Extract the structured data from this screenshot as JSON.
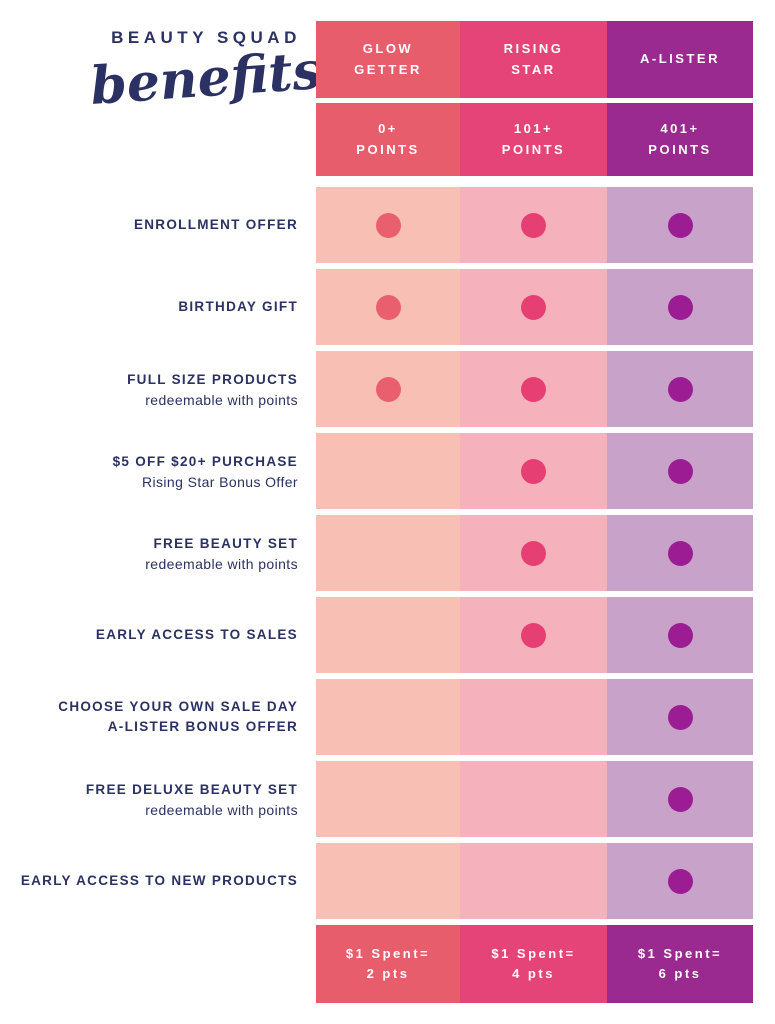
{
  "brand": {
    "name": "BEAUTY SQUAD",
    "script": "benefits"
  },
  "colors": {
    "navy": "#2B3263",
    "background": "#FFFFFF"
  },
  "tiers": [
    {
      "name": "GLOW\nGETTER",
      "points": "0+\nPOINTS",
      "earn": "$1 Spent=\n2 pts",
      "color_header": "#E85D6B",
      "color_light": "#F8C0B5",
      "color_dot": "#EA5F6E"
    },
    {
      "name": "RISING\nSTAR",
      "points": "101+\nPOINTS",
      "earn": "$1 Spent=\n4 pts",
      "color_header": "#E54479",
      "color_light": "#F5B2BC",
      "color_dot": "#E63F74"
    },
    {
      "name": "A-LISTER",
      "points": "401+\nPOINTS",
      "earn": "$1 Spent=\n6 pts",
      "color_header": "#9A2A8F",
      "color_light": "#C8A2C8",
      "color_dot": "#9C1D93"
    }
  ],
  "benefits": [
    {
      "label": "ENROLLMENT OFFER",
      "sublabel": "",
      "included": [
        true,
        true,
        true
      ]
    },
    {
      "label": "BIRTHDAY GIFT",
      "sublabel": "",
      "included": [
        true,
        true,
        true
      ]
    },
    {
      "label": "FULL SIZE PRODUCTS",
      "sublabel": "redeemable with points",
      "included": [
        true,
        true,
        true
      ]
    },
    {
      "label": "$5 OFF $20+ PURCHASE",
      "sublabel": "Rising Star Bonus Offer",
      "included": [
        false,
        true,
        true
      ]
    },
    {
      "label": "FREE BEAUTY SET",
      "sublabel": "redeemable with points",
      "included": [
        false,
        true,
        true
      ]
    },
    {
      "label": "EARLY ACCESS TO SALES",
      "sublabel": "",
      "included": [
        false,
        true,
        true
      ]
    },
    {
      "label": "CHOOSE YOUR OWN SALE DAY\nA-LISTER BONUS OFFER",
      "sublabel": "",
      "included": [
        false,
        false,
        true
      ]
    },
    {
      "label": "FREE DELUXE BEAUTY SET",
      "sublabel": "redeemable with points",
      "included": [
        false,
        false,
        true
      ]
    },
    {
      "label": "EARLY ACCESS TO NEW PRODUCTS",
      "sublabel": "",
      "included": [
        false,
        false,
        true
      ]
    }
  ],
  "chart_data": {
    "type": "table",
    "title": "Beauty Squad Benefits",
    "columns": [
      "Glow Getter (0+ Points)",
      "Rising Star (101+ Points)",
      "A-Lister (401+ Points)"
    ],
    "rows": [
      "Enrollment Offer",
      "Birthday Gift",
      "Full Size Products (redeemable with points)",
      "$5 Off $20+ Purchase (Rising Star Bonus Offer)",
      "Free Beauty Set (redeemable with points)",
      "Early Access to Sales",
      "Choose Your Own Sale Day (A-Lister Bonus Offer)",
      "Free Deluxe Beauty Set (redeemable with points)",
      "Early Access to New Products"
    ],
    "matrix": [
      [
        1,
        1,
        1
      ],
      [
        1,
        1,
        1
      ],
      [
        1,
        1,
        1
      ],
      [
        0,
        1,
        1
      ],
      [
        0,
        1,
        1
      ],
      [
        0,
        1,
        1
      ],
      [
        0,
        0,
        1
      ],
      [
        0,
        0,
        1
      ],
      [
        0,
        0,
        1
      ]
    ],
    "earn_rates": [
      "$1 Spent = 2 pts",
      "$1 Spent = 4 pts",
      "$1 Spent = 6 pts"
    ],
    "legend_position": "none",
    "grid": false
  }
}
